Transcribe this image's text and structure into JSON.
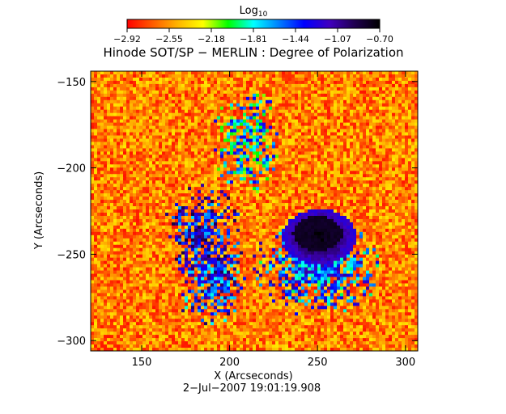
{
  "chart_data": {
    "type": "heatmap",
    "title": "Hinode SOT/SP − MERLIN : Degree of Polarization",
    "xlabel": "X (Arcseconds)",
    "ylabel": "Y (Arcseconds)",
    "timestamp": "2−Jul−2007 19:01:19.908",
    "xlim": [
      121,
      307
    ],
    "ylim": [
      -306,
      -144
    ],
    "x_ticks": [
      150,
      200,
      250,
      300
    ],
    "x_tick_labels": [
      "150",
      "200",
      "250",
      "300"
    ],
    "y_ticks": [
      -150,
      -200,
      -250,
      -300
    ],
    "y_tick_labels": [
      "−150",
      "−200",
      "−250",
      "−300"
    ],
    "colorbar": {
      "label": "Log",
      "label_subscript": "10",
      "range": [
        -2.92,
        -0.7
      ],
      "ticks": [
        -2.92,
        -2.55,
        -2.18,
        -1.81,
        -1.44,
        -1.07,
        -0.7
      ],
      "tick_labels": [
        "−2.92",
        "−2.55",
        "−2.18",
        "−1.81",
        "−1.44",
        "−1.07",
        "−0.70"
      ],
      "colormap": [
        "#ff0000",
        "#ff5a00",
        "#ffb400",
        "#ffff00",
        "#00ff00",
        "#00ffff",
        "#0080ff",
        "#0000ff",
        "#4000c0",
        "#200050",
        "#000000"
      ]
    },
    "features": [
      {
        "name": "sunspot umbra",
        "x": 250,
        "y": -238,
        "value": -0.75
      },
      {
        "name": "penumbra",
        "x": 251,
        "y": -240,
        "value": -1.07
      },
      {
        "name": "plage",
        "x": 185,
        "y": -238,
        "value": -1.3
      },
      {
        "name": "plage",
        "x": 190,
        "y": -265,
        "value": -1.4
      },
      {
        "name": "plage",
        "x": 210,
        "y": -185,
        "value": -1.7
      },
      {
        "name": "moat",
        "x": 250,
        "y": -258,
        "value": -1.5
      },
      {
        "name": "quiet sun",
        "value": -2.6
      }
    ]
  }
}
